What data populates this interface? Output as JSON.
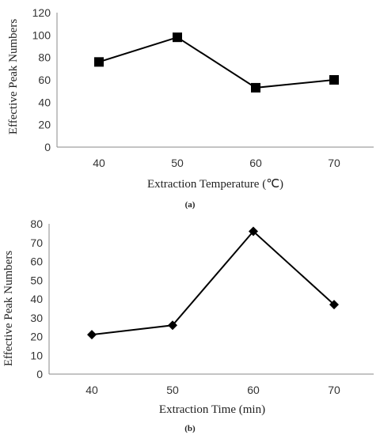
{
  "chart_data": [
    {
      "type": "line",
      "panel_label": "(a)",
      "xlabel": "Extraction Temperature (℃)",
      "ylabel": "Effective Peak Numbers",
      "categories": [
        "40",
        "50",
        "60",
        "70"
      ],
      "values": [
        76,
        98,
        53,
        60
      ],
      "ylim": [
        0,
        120
      ],
      "yticks": [
        0,
        20,
        40,
        60,
        80,
        100,
        120
      ],
      "marker": "square",
      "grid": false
    },
    {
      "type": "line",
      "panel_label": "(b)",
      "xlabel": "Extraction Time (min)",
      "ylabel": "Effective Peak Numbers",
      "categories": [
        "40",
        "50",
        "60",
        "70"
      ],
      "values": [
        21,
        26,
        76,
        37
      ],
      "ylim": [
        0,
        80
      ],
      "yticks": [
        0,
        10,
        20,
        30,
        40,
        50,
        60,
        70,
        80
      ],
      "marker": "diamond",
      "grid": false
    }
  ]
}
